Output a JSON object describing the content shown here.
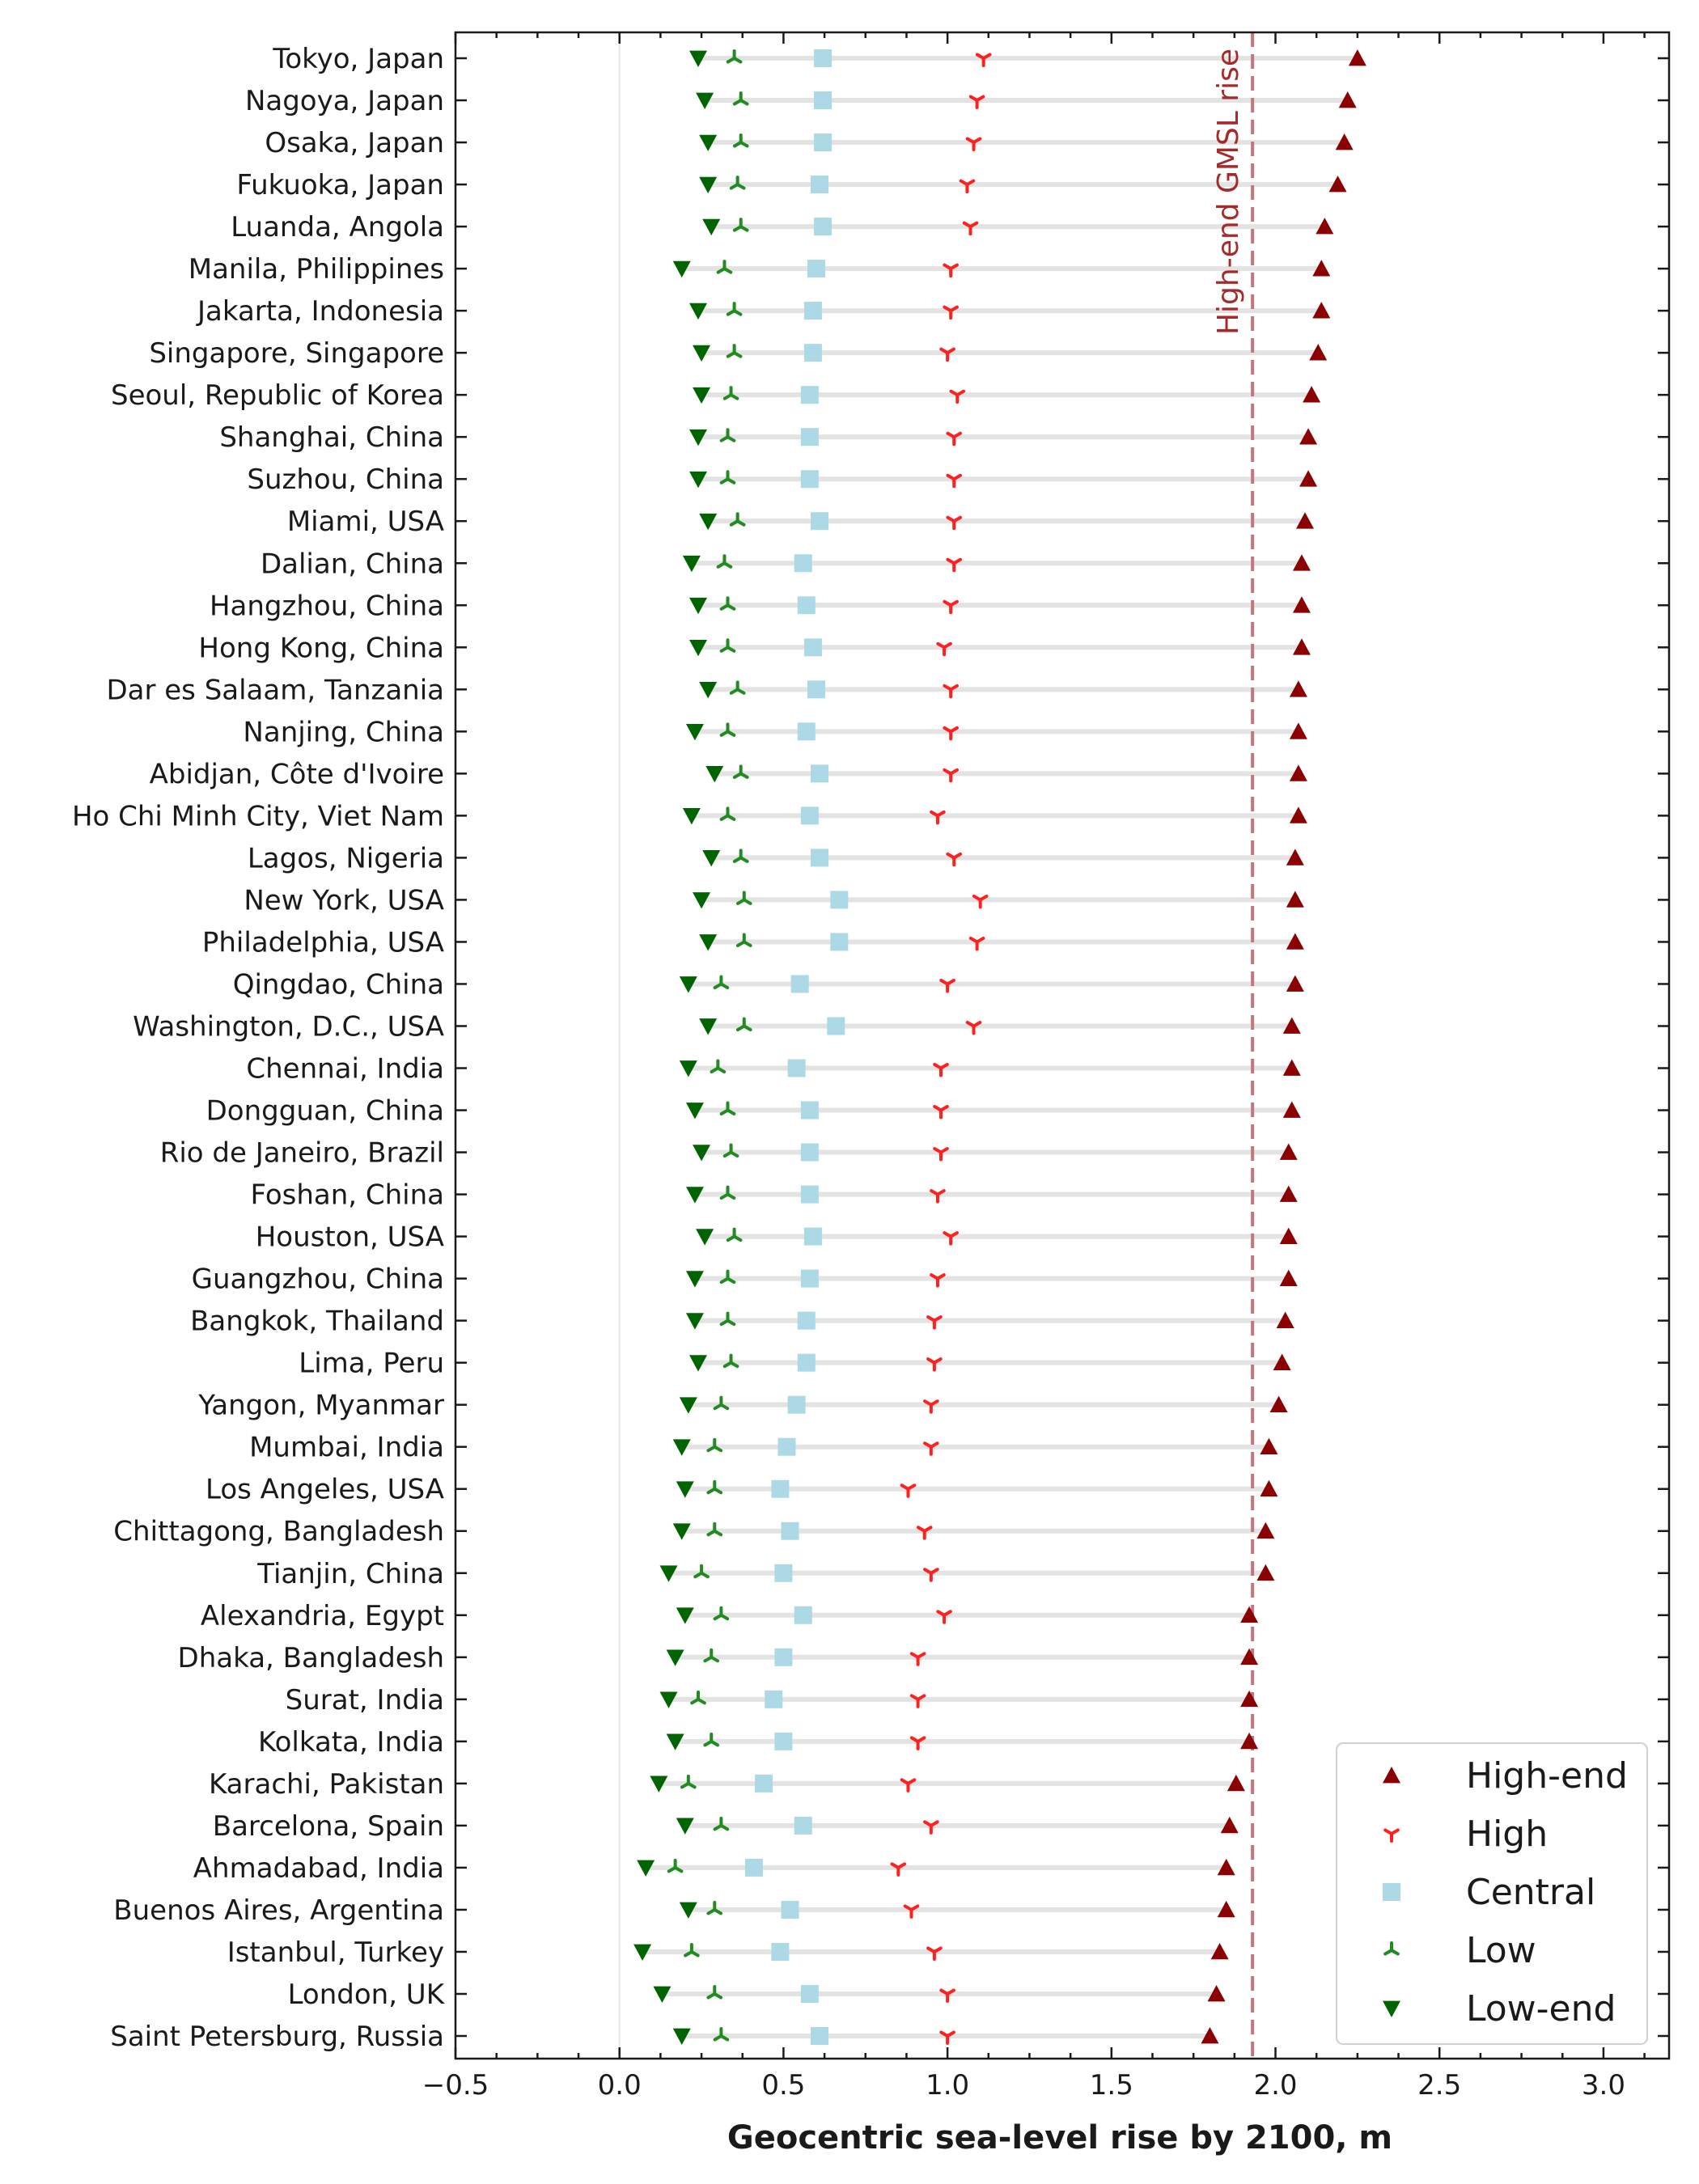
{
  "chart_data": {
    "type": "scatter",
    "xlabel": "Geocentric sea-level rise by 2100, m",
    "xlim": [
      -0.5,
      3.2
    ],
    "xticks": [
      -0.5,
      0.0,
      0.5,
      1.0,
      1.5,
      2.0,
      2.5,
      3.0
    ],
    "xtick_labels": [
      "−0.5",
      "0.0",
      "0.5",
      "1.0",
      "1.5",
      "2.0",
      "2.5",
      "3.0"
    ],
    "reference_line": {
      "x": 1.93,
      "label": "High-end GMSL rise",
      "color": "#c0787e"
    },
    "legend_position": "lower-right",
    "categories": [
      "Tokyo, Japan",
      "Nagoya, Japan",
      "Osaka, Japan",
      "Fukuoka, Japan",
      "Luanda, Angola",
      "Manila, Philippines",
      "Jakarta, Indonesia",
      "Singapore, Singapore",
      "Seoul, Republic of Korea",
      "Shanghai, China",
      "Suzhou, China",
      "Miami, USA",
      "Dalian, China",
      "Hangzhou, China",
      "Hong Kong, China",
      "Dar es Salaam, Tanzania",
      "Nanjing, China",
      "Abidjan, Côte d'Ivoire",
      "Ho Chi Minh City, Viet Nam",
      "Lagos, Nigeria",
      "New York, USA",
      "Philadelphia, USA",
      "Qingdao, China",
      "Washington, D.C., USA",
      "Chennai, India",
      "Dongguan, China",
      "Rio de Janeiro, Brazil",
      "Foshan, China",
      "Houston, USA",
      "Guangzhou, China",
      "Bangkok, Thailand",
      "Lima, Peru",
      "Yangon, Myanmar",
      "Mumbai, India",
      "Los Angeles, USA",
      "Chittagong, Bangladesh",
      "Tianjin, China",
      "Alexandria, Egypt",
      "Dhaka, Bangladesh",
      "Surat, India",
      "Kolkata, India",
      "Karachi, Pakistan",
      "Barcelona, Spain",
      "Ahmadabad, India",
      "Buenos Aires, Argentina",
      "Istanbul, Turkey",
      "London, UK",
      "Saint Petersburg, Russia"
    ],
    "series": [
      {
        "name": "High-end",
        "marker": "triangle-up",
        "color": "#8b0000",
        "values": [
          2.25,
          2.22,
          2.21,
          2.19,
          2.15,
          2.14,
          2.14,
          2.13,
          2.11,
          2.1,
          2.1,
          2.09,
          2.08,
          2.08,
          2.08,
          2.07,
          2.07,
          2.07,
          2.07,
          2.06,
          2.06,
          2.06,
          2.06,
          2.05,
          2.05,
          2.05,
          2.04,
          2.04,
          2.04,
          2.04,
          2.03,
          2.02,
          2.01,
          1.98,
          1.98,
          1.97,
          1.97,
          1.92,
          1.92,
          1.92,
          1.92,
          1.88,
          1.86,
          1.85,
          1.85,
          1.83,
          1.82,
          1.8
        ]
      },
      {
        "name": "High",
        "marker": "tri-down",
        "color": "#ff2020",
        "values": [
          1.11,
          1.09,
          1.08,
          1.06,
          1.07,
          1.01,
          1.01,
          1.0,
          1.03,
          1.02,
          1.02,
          1.02,
          1.02,
          1.01,
          0.99,
          1.01,
          1.01,
          1.01,
          0.97,
          1.02,
          1.1,
          1.09,
          1.0,
          1.08,
          0.98,
          0.98,
          0.98,
          0.97,
          1.01,
          0.97,
          0.96,
          0.96,
          0.95,
          0.95,
          0.88,
          0.93,
          0.95,
          0.99,
          0.91,
          0.91,
          0.91,
          0.88,
          0.95,
          0.85,
          0.89,
          0.96,
          1.0,
          1.0
        ]
      },
      {
        "name": "Central",
        "marker": "square",
        "color": "#add8e6",
        "values": [
          0.62,
          0.62,
          0.62,
          0.61,
          0.62,
          0.6,
          0.59,
          0.59,
          0.58,
          0.58,
          0.58,
          0.61,
          0.56,
          0.57,
          0.59,
          0.6,
          0.57,
          0.61,
          0.58,
          0.61,
          0.67,
          0.67,
          0.55,
          0.66,
          0.54,
          0.58,
          0.58,
          0.58,
          0.59,
          0.58,
          0.57,
          0.57,
          0.54,
          0.51,
          0.49,
          0.52,
          0.5,
          0.56,
          0.5,
          0.47,
          0.5,
          0.44,
          0.56,
          0.41,
          0.52,
          0.49,
          0.58,
          0.61
        ]
      },
      {
        "name": "Low",
        "marker": "tri-up",
        "color": "#228b22",
        "values": [
          0.35,
          0.37,
          0.37,
          0.36,
          0.37,
          0.32,
          0.35,
          0.35,
          0.34,
          0.33,
          0.33,
          0.36,
          0.32,
          0.33,
          0.33,
          0.36,
          0.33,
          0.37,
          0.33,
          0.37,
          0.38,
          0.38,
          0.31,
          0.38,
          0.3,
          0.33,
          0.34,
          0.33,
          0.35,
          0.33,
          0.33,
          0.34,
          0.31,
          0.29,
          0.29,
          0.29,
          0.25,
          0.31,
          0.28,
          0.24,
          0.28,
          0.21,
          0.31,
          0.17,
          0.29,
          0.22,
          0.29,
          0.31
        ]
      },
      {
        "name": "Low-end",
        "marker": "triangle-down",
        "color": "#006400",
        "values": [
          0.24,
          0.26,
          0.27,
          0.27,
          0.28,
          0.19,
          0.24,
          0.25,
          0.25,
          0.24,
          0.24,
          0.27,
          0.22,
          0.24,
          0.24,
          0.27,
          0.23,
          0.29,
          0.22,
          0.28,
          0.25,
          0.27,
          0.21,
          0.27,
          0.21,
          0.23,
          0.25,
          0.23,
          0.26,
          0.23,
          0.23,
          0.24,
          0.21,
          0.19,
          0.2,
          0.19,
          0.15,
          0.2,
          0.17,
          0.15,
          0.17,
          0.12,
          0.2,
          0.08,
          0.21,
          0.07,
          0.13,
          0.19
        ]
      }
    ],
    "legend_order": [
      "High-end",
      "High",
      "Central",
      "Low",
      "Low-end"
    ],
    "grid": false
  }
}
